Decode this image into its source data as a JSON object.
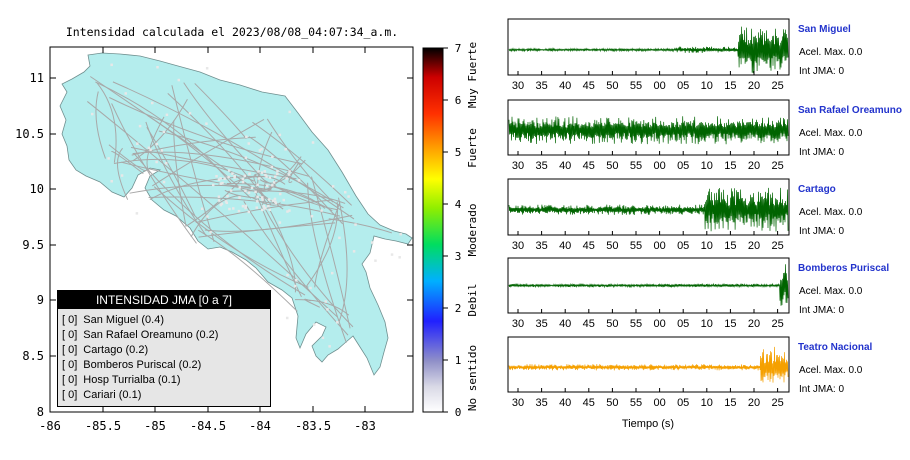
{
  "map": {
    "title": "Intensidad calculada el 2023/08/08_04:07:34_a.m.",
    "y_ticks": [
      "11",
      "10.5",
      "10",
      "9.5",
      "9",
      "8.5",
      "8"
    ],
    "x_ticks": [
      "-86",
      "-85.5",
      "-85",
      "-84.5",
      "-84",
      "-83.5",
      "-83"
    ],
    "land_color": "#b4eded",
    "road_color": "#a8a8a8"
  },
  "legend": {
    "title": "INTENSIDAD JMA [0 a 7]",
    "items": [
      {
        "level": "[ 0]",
        "label": "San Miguel (0.4)"
      },
      {
        "level": "[ 0]",
        "label": "San Rafael Oreamuno (0.2)"
      },
      {
        "level": "[ 0]",
        "label": "Cartago (0.2)"
      },
      {
        "level": "[ 0]",
        "label": "Bomberos Puriscal (0.2)"
      },
      {
        "level": "[ 0]",
        "label": "Hosp Turrialba (0.1)"
      },
      {
        "level": "[ 0]",
        "label": "Cariari (0.1)"
      }
    ]
  },
  "colorbar": {
    "ticks": [
      "7",
      "6",
      "5",
      "4",
      "3",
      "2",
      "1",
      "0"
    ],
    "categories": [
      "Muy Fuerte",
      "Fuerte",
      "Moderado",
      "Debil",
      "No sentido"
    ]
  },
  "seismograms": {
    "xlabel": "Tiempo (s)",
    "tick_labels": [
      "30",
      "35",
      "40",
      "45",
      "50",
      "55",
      "00",
      "05",
      "10",
      "15",
      "20",
      "25"
    ],
    "stations": [
      {
        "name": "San Miguel",
        "acel": "Acel. Max. 0.0",
        "int": "Int JMA: 0",
        "color": "#006400",
        "show_ticks": true
      },
      {
        "name": "San Rafael Oreamuno",
        "acel": "Acel. Max. 0.0",
        "int": "Int JMA: 0",
        "color": "#006400",
        "show_ticks": true
      },
      {
        "name": "Cartago",
        "acel": "Acel. Max. 0.0",
        "int": "Int JMA: 0",
        "color": "#006400",
        "show_ticks": true
      },
      {
        "name": "Bomberos Puriscal",
        "acel": "Acel. Max. 0.0",
        "int": "Int JMA: 0",
        "color": "#006400",
        "show_ticks": true
      },
      {
        "name": "Teatro Nacional",
        "acel": "Acel. Max. 0.0",
        "int": "Int JMA: 0",
        "color": "#f5a000",
        "show_ticks": true
      }
    ]
  },
  "chart_data": {
    "type": "map",
    "title": "Intensidad calculada el 2023/08/08_04:07:34_a.m.",
    "xlim": [
      -86,
      -82.6
    ],
    "ylim": [
      8,
      11.3
    ],
    "colorbar_range": [
      0,
      7
    ],
    "stations": [
      {
        "name": "San Miguel",
        "intensity": 0.4
      },
      {
        "name": "San Rafael Oreamuno",
        "intensity": 0.2
      },
      {
        "name": "Cartago",
        "intensity": 0.2
      },
      {
        "name": "Bomberos Puriscal",
        "intensity": 0.2
      },
      {
        "name": "Hosp Turrialba",
        "intensity": 0.1
      },
      {
        "name": "Cariari",
        "intensity": 0.1
      }
    ]
  }
}
